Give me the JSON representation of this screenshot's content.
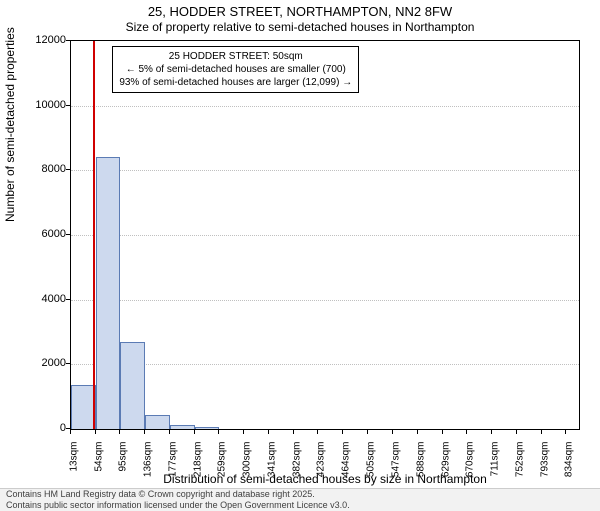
{
  "title": "25, HODDER STREET, NORTHAMPTON, NN2 8FW",
  "subtitle": "Size of property relative to semi-detached houses in Northampton",
  "ylabel": "Number of semi-detached properties",
  "xlabel": "Distribution of semi-detached houses by size in Northampton",
  "attribution_line1": "Contains HM Land Registry data © Crown copyright and database right 2025.",
  "attribution_line2": "Contains public sector information licensed under the Open Government Licence v3.0.",
  "chart": {
    "type": "histogram",
    "ylim": [
      0,
      12000
    ],
    "yticks": [
      0,
      2000,
      4000,
      6000,
      8000,
      10000,
      12000
    ],
    "xtick_labels": [
      "13sqm",
      "54sqm",
      "95sqm",
      "136sqm",
      "177sqm",
      "218sqm",
      "259sqm",
      "300sqm",
      "341sqm",
      "382sqm",
      "423sqm",
      "464sqm",
      "505sqm",
      "547sqm",
      "588sqm",
      "629sqm",
      "670sqm",
      "711sqm",
      "752sqm",
      "793sqm",
      "834sqm"
    ],
    "xtick_values": [
      13,
      54,
      95,
      136,
      177,
      218,
      259,
      300,
      341,
      382,
      423,
      464,
      505,
      547,
      588,
      629,
      670,
      711,
      752,
      793,
      834
    ],
    "xlim": [
      13,
      855
    ],
    "bars": [
      {
        "x0": 13,
        "x1": 54,
        "value": 1350
      },
      {
        "x0": 54,
        "x1": 95,
        "value": 8400
      },
      {
        "x0": 95,
        "x1": 136,
        "value": 2700
      },
      {
        "x0": 136,
        "x1": 177,
        "value": 420
      },
      {
        "x0": 177,
        "x1": 218,
        "value": 120
      },
      {
        "x0": 218,
        "x1": 259,
        "value": 60
      }
    ],
    "bar_fill": "#cdd9ee",
    "bar_stroke": "#5b7bb4",
    "grid_color": "#c0c0c0",
    "background": "#ffffff",
    "marker_line_x": 50,
    "marker_line_color": "#d00000",
    "title_fontsize": 13,
    "subtitle_fontsize": 12,
    "label_fontsize": 12,
    "tick_fontsize": 11
  },
  "infobox": {
    "line1": "25 HODDER STREET: 50sqm",
    "line2": "← 5% of semi-detached houses are smaller (700)",
    "line3": "93% of semi-detached houses are larger (12,099) →"
  }
}
